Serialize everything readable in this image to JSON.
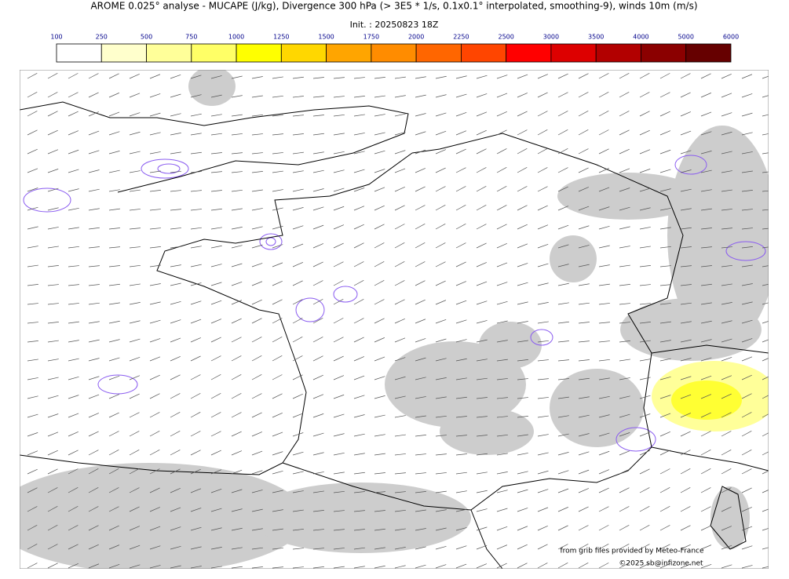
{
  "title": "AROME 0.025° analyse - MUCAPE (J/kg), Divergence 300 hPa (> 3E5 * 1/s, 0.1x0.1° interpolated, smoothing-9), winds 10m (m/s)",
  "subtitle": "Init. : 20250823 18Z",
  "colorbar": {
    "ticks": [
      100,
      250,
      500,
      750,
      1000,
      1250,
      1500,
      1750,
      2000,
      2250,
      2500,
      3000,
      3500,
      4000,
      5000,
      6000
    ],
    "colors": [
      "#ffffff",
      "#ffffcc",
      "#ffff99",
      "#ffff66",
      "#ffff00",
      "#ffd700",
      "#ffa500",
      "#ff8c00",
      "#ff6600",
      "#ff4500",
      "#ff0000",
      "#dd0000",
      "#b20000",
      "#8b0000",
      "#660000"
    ]
  },
  "credits": [
    "from grib files provided by Meteo-France",
    "©2025 sb@infizone.net"
  ]
}
